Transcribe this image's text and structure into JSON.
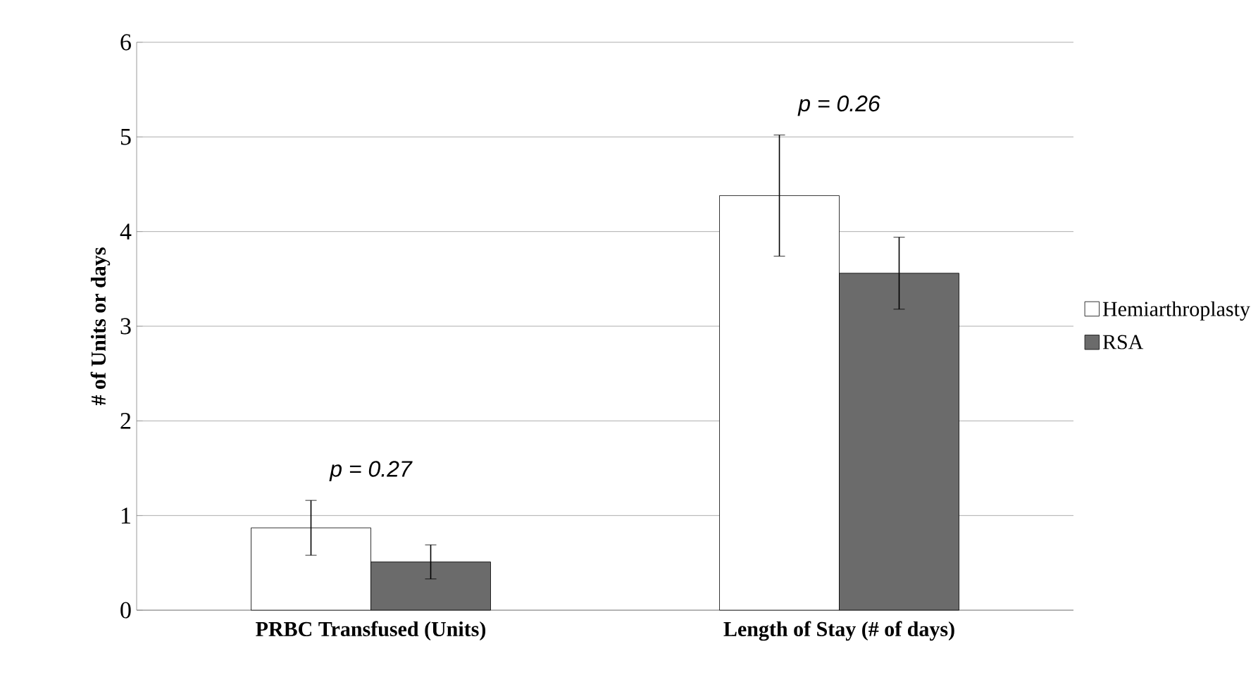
{
  "chart_data": {
    "type": "bar",
    "ylabel": "# of Units or days",
    "categories": [
      "PRBC Transfused (Units)",
      "Length of Stay (# of days)"
    ],
    "series": [
      {
        "name": "Hemiarthroplasty",
        "color": "#ffffff",
        "values": [
          0.87,
          4.38
        ],
        "errors": [
          0.29,
          0.64
        ]
      },
      {
        "name": "RSA",
        "color": "#6b6b6b",
        "values": [
          0.51,
          3.56
        ],
        "errors": [
          0.18,
          0.38
        ]
      }
    ],
    "ylim": [
      0,
      6
    ],
    "yticks": [
      0,
      1,
      2,
      3,
      4,
      5,
      6
    ],
    "grid": "y",
    "legend": "right",
    "annotations": [
      "p = 0.27",
      "p = 0.26"
    ]
  }
}
